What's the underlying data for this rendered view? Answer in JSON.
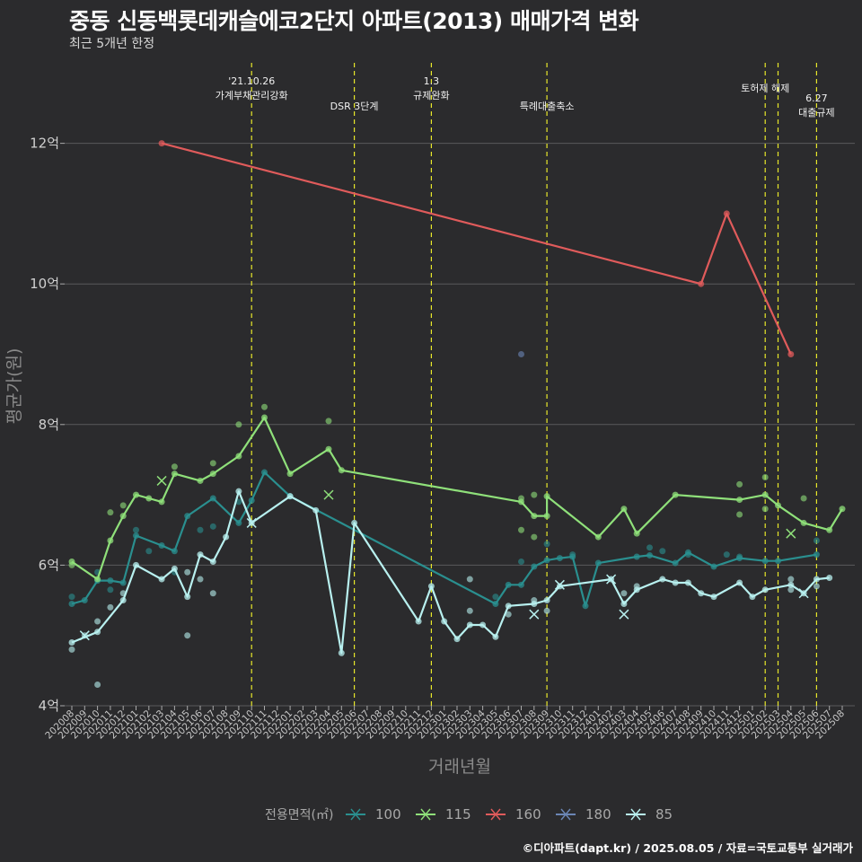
{
  "header": {
    "title": "중동 신동백롯데캐슬에코2단지 아파트(2013) 매매가격 변화",
    "subtitle": "최근 5개년 한정"
  },
  "footer": {
    "caption": "©디아파트(dapt.kr) / 2025.08.05 / 자료=국토교통부 실거래가"
  },
  "chart_data": {
    "type": "line",
    "xlabel": "거래년월",
    "ylabel": "평균가(원)",
    "ylim": [
      4,
      12.8
    ],
    "y_ticks": [
      {
        "value": 4,
        "label": "4억"
      },
      {
        "value": 6,
        "label": "6억"
      },
      {
        "value": 8,
        "label": "8억"
      },
      {
        "value": 10,
        "label": "10억"
      },
      {
        "value": 12,
        "label": "12억"
      }
    ],
    "categories": [
      "202008",
      "202009",
      "202010",
      "202011",
      "202012",
      "202101",
      "202102",
      "202103",
      "202104",
      "202105",
      "202106",
      "202107",
      "202108",
      "202109",
      "202110",
      "202111",
      "202112",
      "202201",
      "202202",
      "202203",
      "202204",
      "202205",
      "202206",
      "202207",
      "202208",
      "202209",
      "202210",
      "202211",
      "202212",
      "202301",
      "202302",
      "202303",
      "202304",
      "202305",
      "202306",
      "202307",
      "202308",
      "202309",
      "202310",
      "202311",
      "202312",
      "202401",
      "202402",
      "202403",
      "202404",
      "202405",
      "202406",
      "202407",
      "202408",
      "202409",
      "202410",
      "202411",
      "202412",
      "202501",
      "202502",
      "202503",
      "202504",
      "202505",
      "202506",
      "202507",
      "202508"
    ],
    "events": [
      {
        "x": "202110",
        "label": "'21.10.26\n가계부채관리강화",
        "row": 0
      },
      {
        "x": "202206",
        "label": "DSR 3단계",
        "row": 1
      },
      {
        "x": "202212",
        "label": "1.3\n규제완화",
        "row": 0
      },
      {
        "x": "202309",
        "label": "특례대출축소",
        "row": 1
      },
      {
        "x": "202502",
        "label": "토허제 해제",
        "row": 0.5
      },
      {
        "x": "202503",
        "label": "",
        "row": 0
      },
      {
        "x": "202506",
        "label": "6.27\n대출규제",
        "row": 1
      }
    ],
    "legend_title": "전용면적(㎡)",
    "series": [
      {
        "name": "100",
        "color": "#2a8f8f",
        "points": [
          [
            "202008",
            5.45
          ],
          [
            "202009",
            5.5
          ],
          [
            "202010",
            5.78
          ],
          [
            "202011",
            5.78
          ],
          [
            "202012",
            5.75
          ],
          [
            "202101",
            6.42
          ],
          [
            "202103",
            6.28
          ],
          [
            "202104",
            6.2
          ],
          [
            "202105",
            6.7
          ],
          [
            "202107",
            6.95
          ],
          [
            "202109",
            6.6
          ],
          [
            "202110",
            6.92
          ],
          [
            "202111",
            7.32
          ],
          [
            "202201",
            6.98
          ],
          [
            "202305",
            5.45
          ],
          [
            "202306",
            5.72
          ],
          [
            "202307",
            5.72
          ],
          [
            "202308",
            5.98
          ],
          [
            "202309",
            6.07
          ],
          [
            "202310",
            6.1
          ],
          [
            "202311",
            6.12
          ],
          [
            "202312",
            5.42
          ],
          [
            "202401",
            6.03
          ],
          [
            "202404",
            6.12
          ],
          [
            "202405",
            6.14
          ],
          [
            "202407",
            6.03
          ],
          [
            "202408",
            6.18
          ],
          [
            "202410",
            5.98
          ],
          [
            "202412",
            6.1
          ],
          [
            "202502",
            6.06
          ],
          [
            "202503",
            6.06
          ],
          [
            "202506",
            6.15
          ]
        ],
        "crosses": [],
        "extra_dots": [
          [
            "202008",
            5.55
          ],
          [
            "202010",
            5.9
          ],
          [
            "202011",
            5.65
          ],
          [
            "202101",
            6.5
          ],
          [
            "202102",
            6.2
          ],
          [
            "202104",
            5.9
          ],
          [
            "202106",
            6.5
          ],
          [
            "202107",
            6.55
          ],
          [
            "202109",
            6.9
          ],
          [
            "202305",
            5.55
          ],
          [
            "202307",
            6.05
          ],
          [
            "202309",
            6.3
          ],
          [
            "202311",
            6.15
          ],
          [
            "202405",
            6.25
          ],
          [
            "202406",
            6.2
          ],
          [
            "202408",
            6.15
          ],
          [
            "202411",
            6.15
          ],
          [
            "202412",
            6.12
          ],
          [
            "202506",
            6.35
          ]
        ]
      },
      {
        "name": "115",
        "color": "#8fe07a",
        "points": [
          [
            "202008",
            6.05
          ],
          [
            "202010",
            5.8
          ],
          [
            "202011",
            6.35
          ],
          [
            "202012",
            6.7
          ],
          [
            "202101",
            7.0
          ],
          [
            "202102",
            6.95
          ],
          [
            "202103",
            6.9
          ],
          [
            "202104",
            7.3
          ],
          [
            "202106",
            7.2
          ],
          [
            "202107",
            7.3
          ],
          [
            "202109",
            7.55
          ],
          [
            "202111",
            8.1
          ],
          [
            "202201",
            7.3
          ],
          [
            "202204",
            7.65
          ],
          [
            "202205",
            7.35
          ],
          [
            "202307",
            6.9
          ],
          [
            "202308",
            6.7
          ],
          [
            "202309",
            6.7
          ],
          [
            "202309",
            6.98
          ],
          [
            "202401",
            6.4
          ],
          [
            "202403",
            6.8
          ],
          [
            "202404",
            6.45
          ],
          [
            "202407",
            7.0
          ],
          [
            "202412",
            6.93
          ],
          [
            "202502",
            7.0
          ],
          [
            "202503",
            6.85
          ],
          [
            "202505",
            6.6
          ],
          [
            "202507",
            6.5
          ],
          [
            "202508",
            6.8
          ]
        ],
        "crosses": [
          [
            "202103",
            7.2
          ],
          [
            "202204",
            7.0
          ],
          [
            "202504",
            6.45
          ]
        ],
        "extra_dots": [
          [
            "202011",
            6.75
          ],
          [
            "202012",
            6.85
          ],
          [
            "202104",
            7.4
          ],
          [
            "202107",
            7.45
          ],
          [
            "202109",
            8.0
          ],
          [
            "202111",
            8.25
          ],
          [
            "202204",
            8.05
          ],
          [
            "202307",
            6.95
          ],
          [
            "202308",
            7.0
          ],
          [
            "202308",
            6.4
          ],
          [
            "202307",
            6.5
          ],
          [
            "202412",
            7.15
          ],
          [
            "202412",
            6.72
          ],
          [
            "202502",
            7.25
          ],
          [
            "202502",
            6.8
          ],
          [
            "202505",
            6.95
          ],
          [
            "202008",
            6.0
          ]
        ]
      },
      {
        "name": "160",
        "color": "#e05b5b",
        "points": [
          [
            "202103",
            12.0
          ],
          [
            "202409",
            10.0
          ],
          [
            "202411",
            11.0
          ],
          [
            "202504",
            9.0
          ]
        ],
        "crosses": [],
        "extra_dots": []
      },
      {
        "name": "180",
        "color": "#6b86b5",
        "points": [],
        "crosses": [],
        "extra_dots": [
          [
            "202307",
            9.0
          ]
        ]
      },
      {
        "name": "85",
        "color": "#b8f0ef",
        "points": [
          [
            "202008",
            4.9
          ],
          [
            "202010",
            5.05
          ],
          [
            "202012",
            5.5
          ],
          [
            "202101",
            6.0
          ],
          [
            "202103",
            5.8
          ],
          [
            "202104",
            5.95
          ],
          [
            "202105",
            5.55
          ],
          [
            "202106",
            6.15
          ],
          [
            "202107",
            6.05
          ],
          [
            "202108",
            6.4
          ],
          [
            "202109",
            7.05
          ],
          [
            "202110",
            6.6
          ],
          [
            "202201",
            6.98
          ],
          [
            "202203",
            6.78
          ],
          [
            "202205",
            4.75
          ],
          [
            "202206",
            6.6
          ],
          [
            "202211",
            5.2
          ],
          [
            "202212",
            5.7
          ],
          [
            "202301",
            5.2
          ],
          [
            "202302",
            4.95
          ],
          [
            "202303",
            5.15
          ],
          [
            "202304",
            5.15
          ],
          [
            "202305",
            4.98
          ],
          [
            "202306",
            5.42
          ],
          [
            "202308",
            5.45
          ],
          [
            "202309",
            5.5
          ],
          [
            "202310",
            5.7
          ],
          [
            "202402",
            5.8
          ],
          [
            "202403",
            5.45
          ],
          [
            "202404",
            5.65
          ],
          [
            "202406",
            5.8
          ],
          [
            "202407",
            5.75
          ],
          [
            "202408",
            5.75
          ],
          [
            "202409",
            5.6
          ],
          [
            "202410",
            5.55
          ],
          [
            "202412",
            5.75
          ],
          [
            "202501",
            5.55
          ],
          [
            "202502",
            5.65
          ],
          [
            "202504",
            5.72
          ],
          [
            "202505",
            5.6
          ],
          [
            "202506",
            5.8
          ],
          [
            "202507",
            5.82
          ]
        ],
        "crosses": [
          [
            "202009",
            5.0
          ],
          [
            "202110",
            6.6
          ],
          [
            "202308",
            5.3
          ],
          [
            "202310",
            5.72
          ],
          [
            "202402",
            5.8
          ],
          [
            "202403",
            5.3
          ],
          [
            "202505",
            5.6
          ]
        ],
        "extra_dots": [
          [
            "202008",
            4.8
          ],
          [
            "202009",
            5.0
          ],
          [
            "202010",
            4.3
          ],
          [
            "202010",
            5.2
          ],
          [
            "202011",
            5.4
          ],
          [
            "202012",
            5.6
          ],
          [
            "202105",
            5.0
          ],
          [
            "202105",
            5.9
          ],
          [
            "202106",
            5.8
          ],
          [
            "202107",
            5.6
          ],
          [
            "202303",
            5.35
          ],
          [
            "202303",
            5.8
          ],
          [
            "202306",
            5.3
          ],
          [
            "202308",
            5.5
          ],
          [
            "202309",
            5.35
          ],
          [
            "202403",
            5.6
          ],
          [
            "202404",
            5.7
          ],
          [
            "202504",
            5.65
          ],
          [
            "202504",
            5.8
          ],
          [
            "202506",
            5.7
          ]
        ]
      }
    ]
  }
}
